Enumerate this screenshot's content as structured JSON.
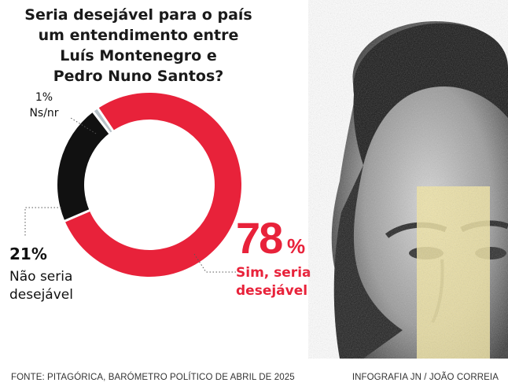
{
  "title_lines": [
    "Seria desejável para o país",
    "um entendimento entre",
    "Luís Montenegro e",
    "Pedro Nuno Santos?"
  ],
  "chart_data": {
    "type": "pie",
    "donut": true,
    "slices": [
      {
        "label_lines": [
          "Sim, seria",
          "desejável"
        ],
        "value": 78,
        "value_text": "78",
        "suffix": "%",
        "color": "#e8223a"
      },
      {
        "label_lines": [
          "Não seria",
          "desejável"
        ],
        "value": 21,
        "value_text": "21%",
        "color": "#111111"
      },
      {
        "label_lines": [
          "Ns/nr"
        ],
        "value": 1,
        "value_text": "1%",
        "color": "#b8c2c8"
      }
    ]
  },
  "colors": {
    "accent": "#e8223a",
    "highlight": "#f3e6a2"
  },
  "footer": {
    "source": "FONTE: PITAGÓRICA, BARÓMETRO POLÍTICO DE ABRIL DE 2025",
    "credit": "INFOGRAFIA JN / JOÃO CORREIA"
  }
}
